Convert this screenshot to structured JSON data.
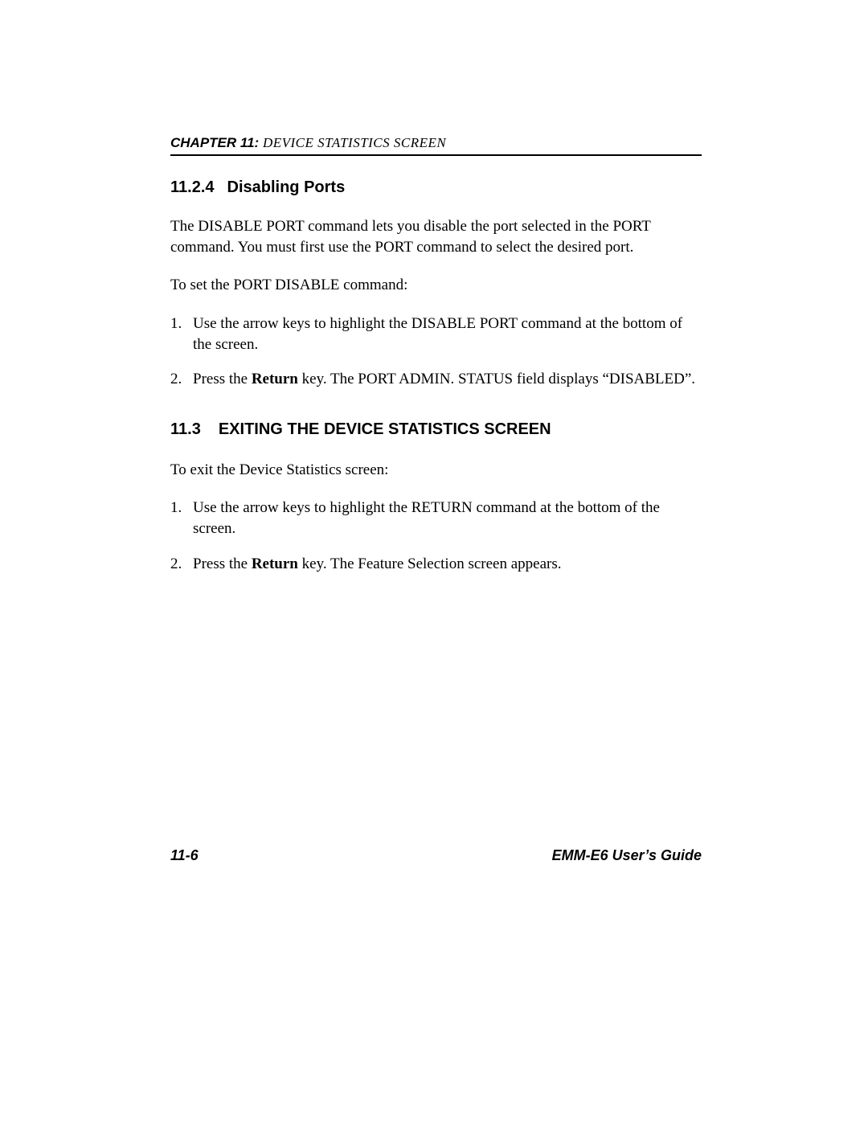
{
  "header": {
    "chapter_label": "CHAPTER 11:",
    "chapter_title": "  DEVICE STATISTICS SCREEN"
  },
  "subsection": {
    "number": "11.2.4",
    "title": "Disabling Ports"
  },
  "paragraphs": {
    "p1": "The DISABLE PORT command lets you disable the port selected in the PORT command. You must first use the PORT command to select the desired port.",
    "p2": "To set the PORT DISABLE command:",
    "p3": "To exit the Device Statistics screen:"
  },
  "list1": {
    "item1": {
      "number": "1.",
      "text": "Use the arrow keys to highlight the DISABLE PORT command at the bottom of the screen."
    },
    "item2": {
      "number": "2.",
      "text_before": "Press the ",
      "bold": "Return",
      "text_after": " key. The PORT ADMIN. STATUS field displays “DISABLED”."
    }
  },
  "section": {
    "number": "11.3",
    "title": "EXITING THE DEVICE STATISTICS SCREEN"
  },
  "list2": {
    "item1": {
      "number": "1.",
      "text": "Use the arrow keys to highlight the RETURN command at the bottom of the screen."
    },
    "item2": {
      "number": "2.",
      "text_before": "Press the ",
      "bold": "Return",
      "text_after": " key. The Feature Selection screen appears."
    }
  },
  "footer": {
    "page_number": "11-6",
    "guide_title": "EMM-E6 User’s Guide"
  }
}
